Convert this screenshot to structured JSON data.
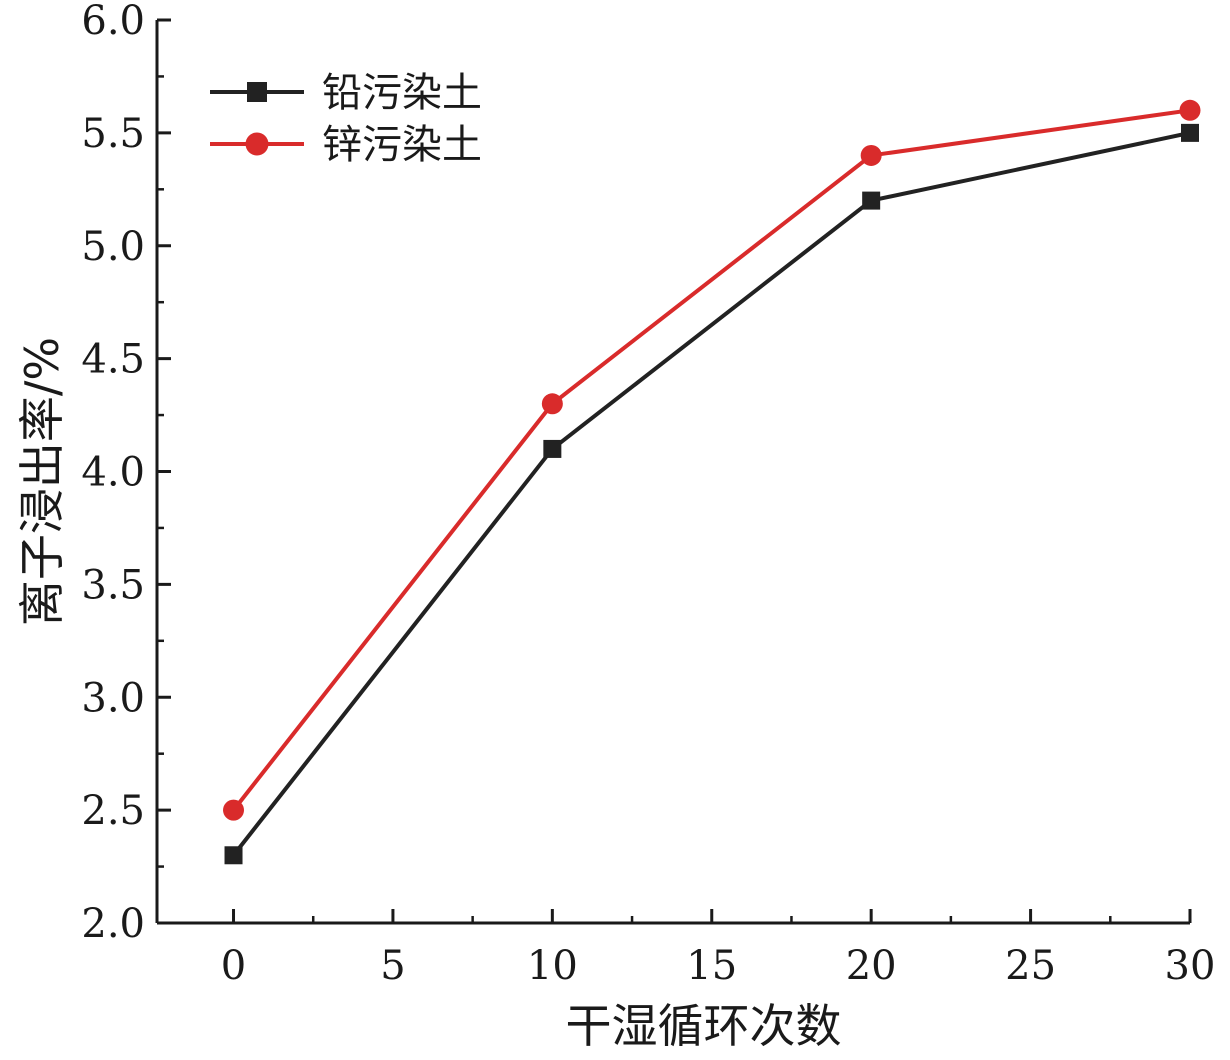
{
  "chart_data": {
    "type": "line",
    "x": [
      0,
      10,
      20,
      30
    ],
    "series": [
      {
        "name": "铅污染土",
        "values": [
          2.3,
          4.1,
          5.2,
          5.5
        ],
        "color": "#222222",
        "marker": "square"
      },
      {
        "name": "锌污染土",
        "values": [
          2.5,
          4.3,
          5.4,
          5.6
        ],
        "color": "#d92b2b",
        "marker": "circle"
      }
    ],
    "xlabel": "干湿循环次数",
    "ylabel": "离子浸出率/%",
    "xlim": [
      -2.4,
      30
    ],
    "ylim": [
      2.0,
      6.0
    ],
    "xticks": [
      0,
      5,
      10,
      15,
      20,
      25,
      30
    ],
    "xtick_labels": [
      "0",
      "5",
      "10",
      "15",
      "20",
      "25",
      "30"
    ],
    "yticks": [
      2.0,
      2.5,
      3.0,
      3.5,
      4.0,
      4.5,
      5.0,
      5.5,
      6.0
    ],
    "ytick_labels": [
      "2.0",
      "2.5",
      "3.0",
      "3.5",
      "4.0",
      "4.5",
      "5.0",
      "5.5",
      "6.0"
    ],
    "grid": false,
    "legend_position": "top-left"
  }
}
